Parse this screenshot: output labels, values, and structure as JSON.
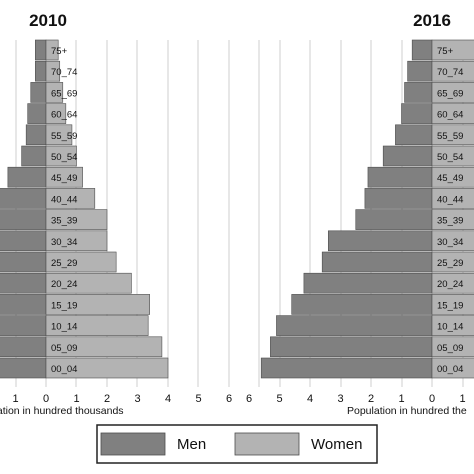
{
  "chart_data": [
    {
      "type": "bar",
      "orientation": "horizontal",
      "title": "2010",
      "xlabel": "Population in hundred thousands",
      "age_groups": [
        "00_04",
        "05_09",
        "10_14",
        "15_19",
        "20_24",
        "25_29",
        "30_34",
        "35_39",
        "40_44",
        "45_49",
        "50_54",
        "55_59",
        "60_64",
        "65_69",
        "70_74",
        "75+"
      ],
      "series": [
        {
          "name": "Men",
          "values": [
            5.0,
            5.0,
            5.0,
            5.0,
            5.0,
            5.0,
            5.0,
            4.8,
            4.0,
            1.25,
            0.8,
            0.65,
            0.6,
            0.5,
            0.35,
            0.35
          ]
        },
        {
          "name": "Women",
          "values": [
            4.0,
            3.8,
            3.35,
            3.4,
            2.8,
            2.3,
            2.0,
            2.0,
            1.6,
            1.2,
            1.0,
            0.85,
            0.65,
            0.55,
            0.45,
            0.4
          ]
        }
      ],
      "xticks": [
        "1",
        "0",
        "1",
        "2",
        "3",
        "4",
        "5",
        "6"
      ],
      "grid": "vertical"
    },
    {
      "type": "bar",
      "orientation": "horizontal",
      "title": "2016",
      "xlabel": "Population in hundred the",
      "age_groups": [
        "00_04",
        "05_09",
        "10_14",
        "15_19",
        "20_24",
        "25_29",
        "30_34",
        "35_39",
        "40_44",
        "45_49",
        "50_54",
        "55_59",
        "60_64",
        "65_69",
        "70_74",
        "75+"
      ],
      "series": [
        {
          "name": "Men",
          "values": [
            5.6,
            5.3,
            5.1,
            4.6,
            4.2,
            3.6,
            3.4,
            2.5,
            2.2,
            2.1,
            1.6,
            1.2,
            1.0,
            0.9,
            0.8,
            0.65
          ]
        },
        {
          "name": "Women",
          "values": [
            2.0,
            2.0,
            2.0,
            2.0,
            2.0,
            2.0,
            2.0,
            2.0,
            2.0,
            2.0,
            2.0,
            2.0,
            2.0,
            2.0,
            2.0,
            2.0
          ]
        }
      ],
      "xticks": [
        "6",
        "5",
        "4",
        "3",
        "2",
        "1",
        "0",
        "1"
      ],
      "grid": "vertical"
    }
  ],
  "legend": {
    "items": [
      {
        "label": "Men",
        "color": "#808080"
      },
      {
        "label": "Women",
        "color": "#b3b3b3"
      }
    ]
  },
  "colors": {
    "men": "#808080",
    "women": "#b3b3b3",
    "grid": "#cfcfcf",
    "edge": "#4d4d4d"
  }
}
